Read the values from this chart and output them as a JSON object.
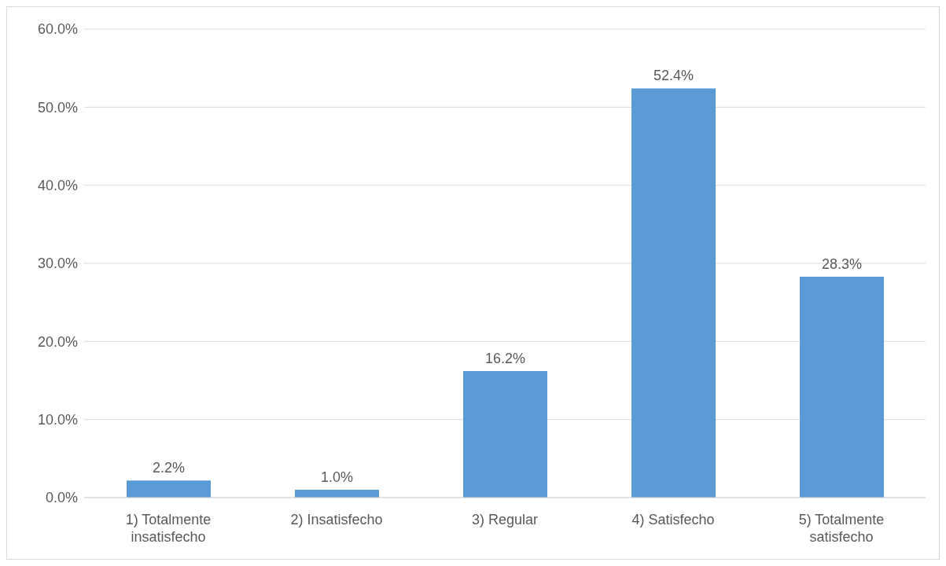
{
  "chart_data": {
    "type": "bar",
    "categories": [
      "1) Totalmente insatisfecho",
      "2) Insatisfecho",
      "3) Regular",
      "4) Satisfecho",
      "5) Totalmente satisfecho"
    ],
    "values": [
      2.2,
      1.0,
      16.2,
      52.4,
      28.3
    ],
    "value_labels": [
      "2.2%",
      "1.0%",
      "16.2%",
      "52.4%",
      "28.3%"
    ],
    "color": "#5b9bd5",
    "ylim": [
      0,
      60
    ],
    "yticks": [
      {
        "value": 0,
        "label": "0.0%"
      },
      {
        "value": 10,
        "label": "10.0%"
      },
      {
        "value": 20,
        "label": "20.0%"
      },
      {
        "value": 30,
        "label": "30.0%"
      },
      {
        "value": 40,
        "label": "40.0%"
      },
      {
        "value": 50,
        "label": "50.0%"
      },
      {
        "value": 60,
        "label": "60.0%"
      }
    ],
    "grid": "y"
  }
}
